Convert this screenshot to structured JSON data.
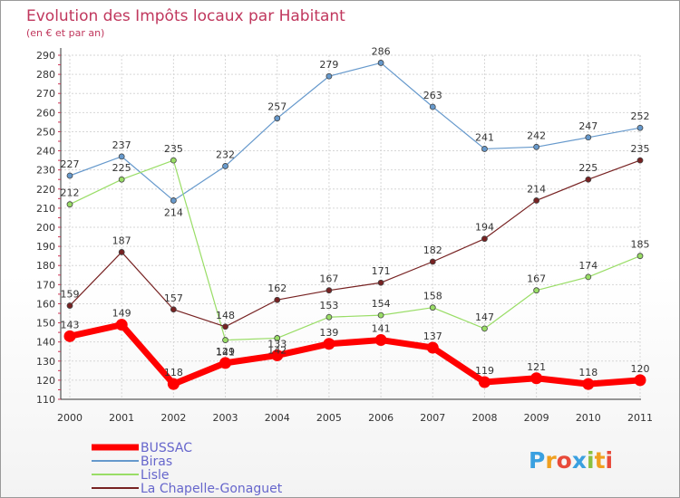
{
  "chart_data": {
    "type": "line",
    "title": "Evolution des Impôts locaux par Habitant",
    "subtitle": "(en € et par an)",
    "categories": [
      "2000",
      "2001",
      "2002",
      "2003",
      "2004",
      "2005",
      "2006",
      "2007",
      "2008",
      "2009",
      "2010",
      "2011"
    ],
    "ylim": [
      110,
      290
    ],
    "yticks": [
      110,
      120,
      130,
      140,
      150,
      160,
      170,
      180,
      190,
      200,
      210,
      220,
      230,
      240,
      250,
      260,
      270,
      280,
      290
    ],
    "grid": true,
    "legend_position": "bottom-left",
    "series": [
      {
        "name": "BUSSAC",
        "color": "#ff0000",
        "values": [
          143,
          149,
          118,
          129,
          133,
          139,
          141,
          137,
          119,
          121,
          118,
          120
        ]
      },
      {
        "name": "Biras",
        "color": "#6699cc",
        "values": [
          227,
          237,
          214,
          232,
          257,
          279,
          286,
          263,
          241,
          242,
          247,
          252
        ]
      },
      {
        "name": "Lisle",
        "color": "#99dd66",
        "values": [
          212,
          225,
          235,
          141,
          142,
          153,
          154,
          158,
          147,
          167,
          174,
          185
        ]
      },
      {
        "name": "La Chapelle-Gonaguet",
        "color": "#772222",
        "values": [
          159,
          187,
          157,
          148,
          162,
          167,
          171,
          182,
          194,
          214,
          225,
          235
        ]
      }
    ]
  },
  "logo": {
    "text": "Proxiti"
  }
}
